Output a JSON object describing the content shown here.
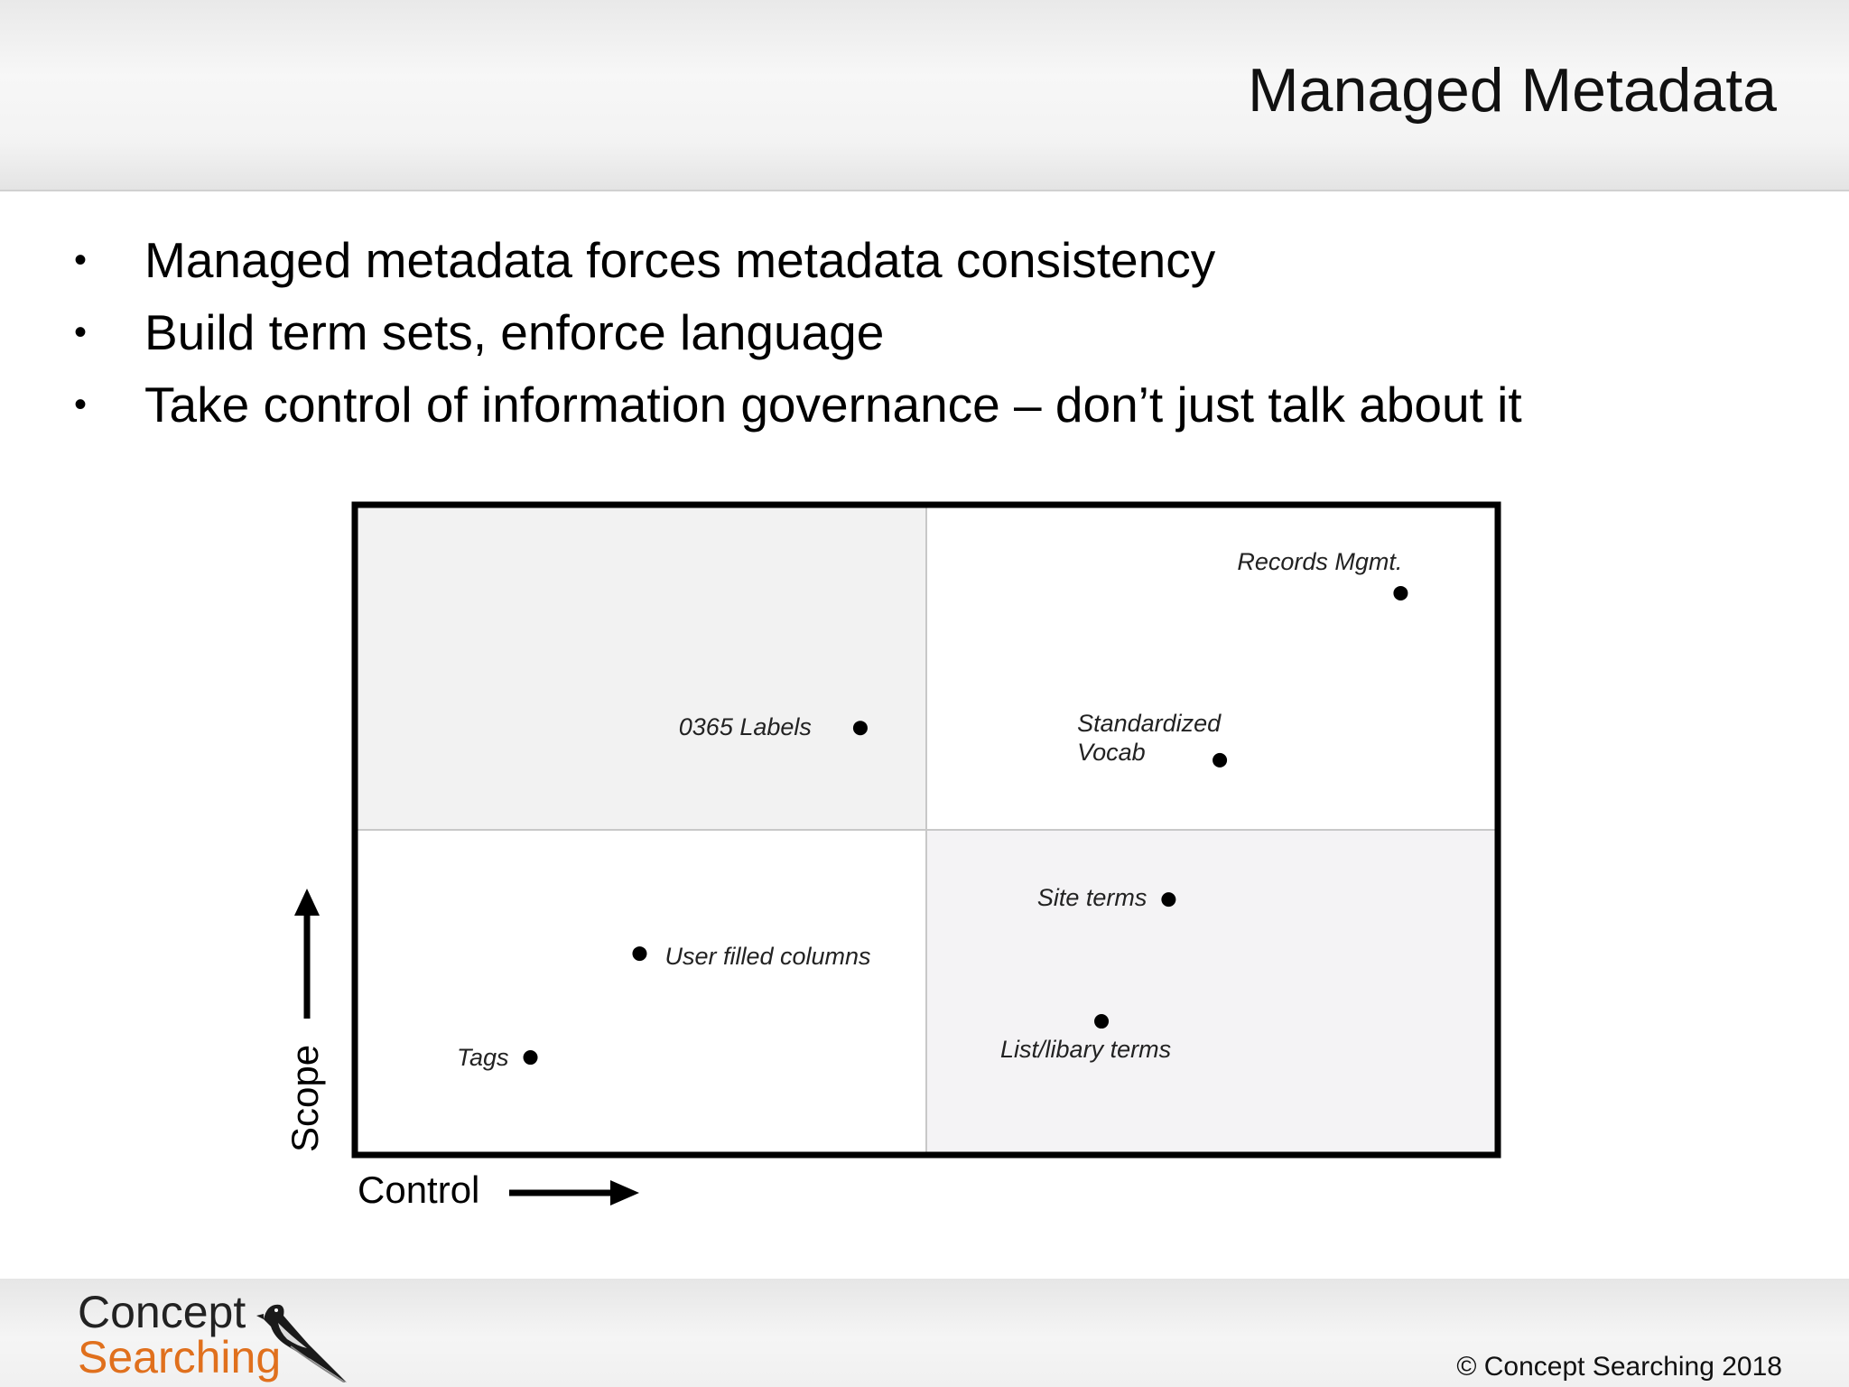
{
  "slide": {
    "title": "Managed Metadata",
    "bullets": [
      "Managed metadata forces metadata consistency",
      "Build term sets, enforce language",
      "Take control of information governance – don’t just talk about it"
    ]
  },
  "chart_data": {
    "type": "scatter",
    "xlabel": "Control",
    "ylabel": "Scope",
    "xlim": [
      0,
      1
    ],
    "ylim": [
      0,
      1
    ],
    "grid": "quadrants",
    "quadrant_colors": {
      "top_left": "#f2f2f2",
      "top_right": "#ffffff",
      "bottom_left": "#ffffff",
      "bottom_right": "#f4f3f5"
    },
    "points": [
      {
        "label": "Records Mgmt.",
        "x": 0.917,
        "y": 0.867
      },
      {
        "label": "0365 Labels",
        "x": 0.442,
        "y": 0.658
      },
      {
        "label": "Standardized Vocab",
        "x": 0.758,
        "y": 0.608
      },
      {
        "label": "Site terms",
        "x": 0.713,
        "y": 0.392
      },
      {
        "label": "User filled columns",
        "x": 0.248,
        "y": 0.308
      },
      {
        "label": "List/libary terms",
        "x": 0.654,
        "y": 0.203
      },
      {
        "label": "Tags",
        "x": 0.152,
        "y": 0.147
      }
    ]
  },
  "footer": {
    "logo_line1": "Concept",
    "logo_line2": "Searching",
    "copyright": "© Concept Searching 2018"
  }
}
